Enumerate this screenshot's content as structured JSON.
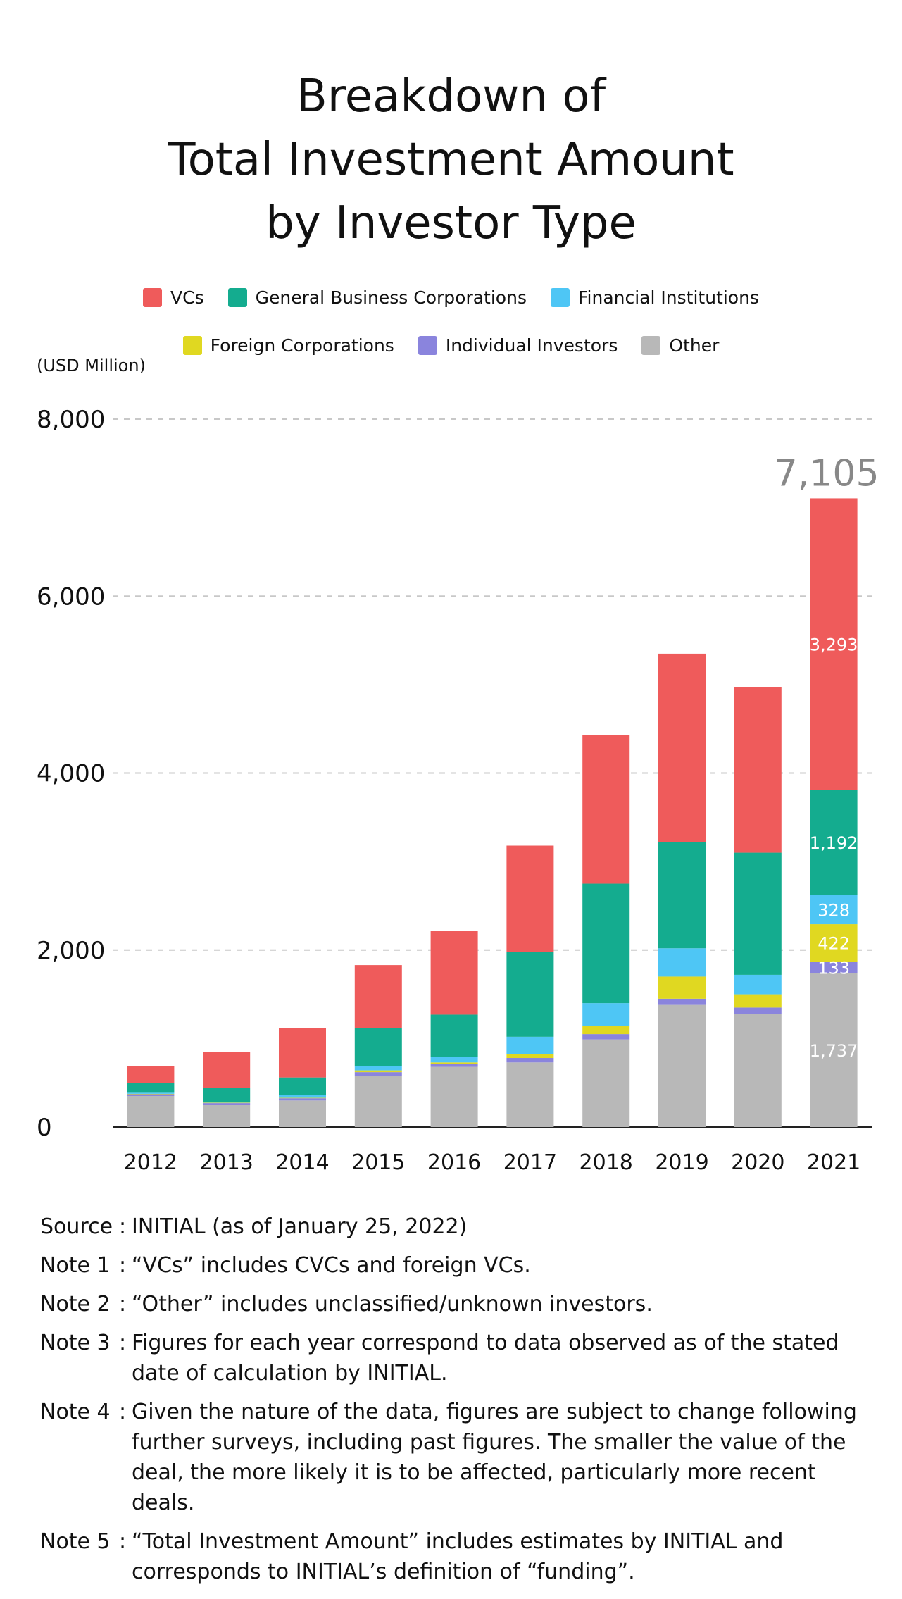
{
  "chart_data": {
    "type": "bar",
    "stacked": true,
    "title": [
      "Breakdown of",
      "Total Investment Amount",
      "by Investor Type"
    ],
    "unit_label": "(USD Million)",
    "ylim": [
      0,
      8000
    ],
    "yticks": [
      0,
      2000,
      4000,
      6000,
      8000
    ],
    "ytick_labels": [
      "0",
      "2,000",
      "4,000",
      "6,000",
      "8,000"
    ],
    "categories": [
      "2012",
      "2013",
      "2014",
      "2015",
      "2016",
      "2017",
      "2018",
      "2019",
      "2020",
      "2021"
    ],
    "series": [
      {
        "name": "Other",
        "color": "#b8b8b8",
        "values": [
          350,
          250,
          300,
          580,
          680,
          730,
          990,
          1380,
          1280,
          1737
        ]
      },
      {
        "name": "Individual Investors",
        "color": "#8a84dd",
        "values": [
          20,
          20,
          25,
          40,
          30,
          50,
          60,
          70,
          70,
          133
        ]
      },
      {
        "name": "Foreign Corporations",
        "color": "#e0d821",
        "values": [
          5,
          5,
          5,
          20,
          20,
          40,
          90,
          250,
          150,
          422
        ]
      },
      {
        "name": "Financial Institutions",
        "color": "#4ec6f5",
        "values": [
          20,
          10,
          30,
          50,
          60,
          200,
          260,
          320,
          220,
          328
        ]
      },
      {
        "name": "General Business Corporations",
        "color": "#14ac8f",
        "values": [
          100,
          160,
          200,
          430,
          480,
          960,
          1350,
          1200,
          1380,
          1192
        ]
      },
      {
        "name": "VCs",
        "color": "#ef5b5b",
        "values": [
          190,
          400,
          560,
          710,
          950,
          1200,
          1680,
          2130,
          1870,
          3293
        ]
      }
    ],
    "total_label": {
      "category": "2021",
      "value": 7105,
      "text": "7,105"
    },
    "data_labels": [
      {
        "category": "2021",
        "series": "VCs",
        "text": "3,293"
      },
      {
        "category": "2021",
        "series": "General Business Corporations",
        "text": "1,192"
      },
      {
        "category": "2021",
        "series": "Financial Institutions",
        "text": "328"
      },
      {
        "category": "2021",
        "series": "Foreign Corporations",
        "text": "422"
      },
      {
        "category": "2021",
        "series": "Individual Investors",
        "text": "133"
      },
      {
        "category": "2021",
        "series": "Other",
        "text": "1,737"
      }
    ]
  },
  "legend": {
    "row1": [
      {
        "label": "VCs",
        "color": "#ef5b5b"
      },
      {
        "label": "General Business Corporations",
        "color": "#14ac8f"
      },
      {
        "label": "Financial Institutions",
        "color": "#4ec6f5"
      }
    ],
    "row2": [
      {
        "label": "Foreign Corporations",
        "color": "#e0d821"
      },
      {
        "label": "Individual Investors",
        "color": "#8a84dd"
      },
      {
        "label": "Other",
        "color": "#b8b8b8"
      }
    ]
  },
  "notes": [
    {
      "label": "Source",
      "text": "INITIAL (as of January 25, 2022)"
    },
    {
      "label": "Note 1",
      "text": "“VCs” includes CVCs and foreign VCs."
    },
    {
      "label": "Note 2",
      "text": "“Other” includes unclassified/unknown investors."
    },
    {
      "label": "Note 3",
      "text": "Figures for each year correspond to data observed as of the stated date of calculation by INITIAL."
    },
    {
      "label": "Note 4",
      "text": "Given the nature of the data, figures are subject to change following further surveys, including past figures. The smaller the value of the deal, the more likely it is to be affected, particularly more recent deals."
    },
    {
      "label": "Note 5",
      "text": "“Total Investment Amount” includes estimates by INITIAL and corresponds to INITIAL’s definition of “funding”."
    }
  ],
  "note_separator": ":"
}
